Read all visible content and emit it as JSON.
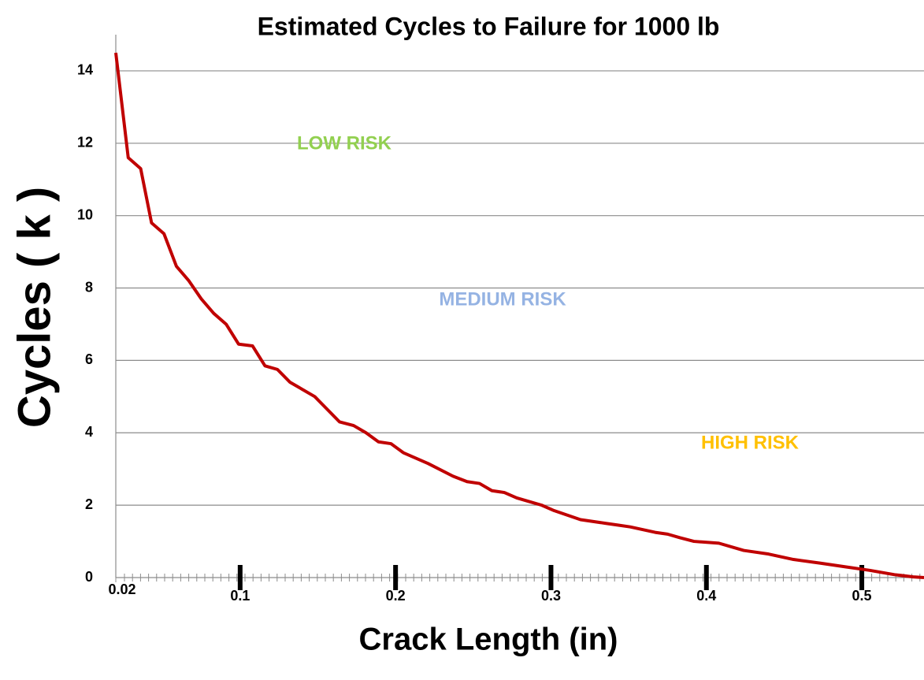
{
  "chart_data": {
    "type": "line",
    "title": "Estimated Cycles to Failure for 1000 lb",
    "x_label": "Crack Length (in)",
    "y_label": "Cycles ( k )",
    "x": [
      0.02,
      0.028,
      0.036,
      0.043,
      0.051,
      0.059,
      0.067,
      0.075,
      0.083,
      0.091,
      0.099,
      0.108,
      0.116,
      0.124,
      0.132,
      0.148,
      0.164,
      0.173,
      0.181,
      0.189,
      0.197,
      0.205,
      0.213,
      0.221,
      0.237,
      0.246,
      0.254,
      0.262,
      0.27,
      0.278,
      0.286,
      0.294,
      0.302,
      0.319,
      0.335,
      0.343,
      0.351,
      0.367,
      0.375,
      0.383,
      0.392,
      0.408,
      0.424,
      0.44,
      0.456,
      0.473,
      0.489,
      0.505,
      0.521,
      0.533,
      0.54
    ],
    "series": [
      {
        "name": "Cycles",
        "color": "#c00000",
        "values": [
          14.5,
          11.6,
          11.3,
          9.8,
          9.5,
          8.6,
          8.2,
          7.7,
          7.3,
          7.0,
          6.45,
          6.4,
          5.85,
          5.75,
          5.4,
          5.0,
          4.3,
          4.2,
          4.0,
          3.75,
          3.7,
          3.45,
          3.3,
          3.15,
          2.8,
          2.65,
          2.6,
          2.4,
          2.35,
          2.2,
          2.1,
          2.0,
          1.85,
          1.6,
          1.5,
          1.45,
          1.4,
          1.25,
          1.2,
          1.1,
          1.0,
          0.95,
          0.75,
          0.65,
          0.5,
          0.4,
          0.3,
          0.2,
          0.08,
          0.02,
          0
        ]
      }
    ],
    "xlim": [
      0.02,
      0.54
    ],
    "xticks": [
      0.02,
      0.1,
      0.2,
      0.3,
      0.4,
      0.5
    ],
    "ylim": [
      0,
      15
    ],
    "yticks": [
      0,
      2,
      4,
      6,
      8,
      10,
      12,
      14
    ],
    "grid": true,
    "annotations": [
      {
        "text": "LOW RISK",
        "color": "#92d050"
      },
      {
        "text": "MEDIUM RISK",
        "color": "#95b3e3"
      },
      {
        "text": "HIGH RISK",
        "color": "#ffc000"
      }
    ]
  }
}
